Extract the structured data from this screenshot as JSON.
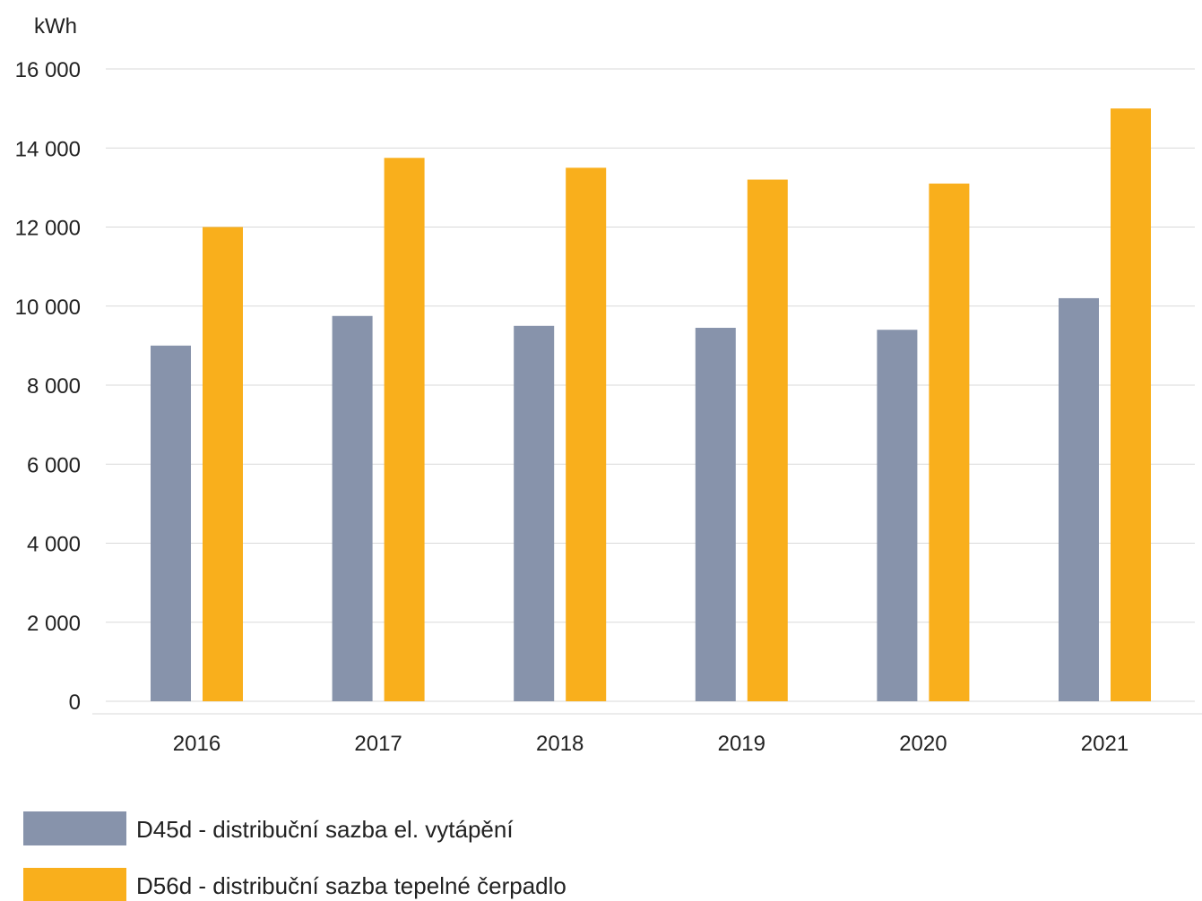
{
  "chart_data": {
    "type": "bar",
    "unit_label": "kWh",
    "categories": [
      "2016",
      "2017",
      "2018",
      "2019",
      "2020",
      "2021"
    ],
    "series": [
      {
        "name": "D45d - distribuční sazba el. vytápění",
        "color": "#8793ab",
        "values": [
          9000,
          9750,
          9500,
          9450,
          9400,
          10200
        ]
      },
      {
        "name": "D56d - distribuční sazba tepelné čerpadlo",
        "color": "#f9af1c",
        "values": [
          12000,
          13750,
          13500,
          13200,
          13100,
          15000
        ]
      }
    ],
    "ylim": [
      0,
      16000
    ],
    "yticks": [
      0,
      2000,
      4000,
      6000,
      8000,
      10000,
      12000,
      14000,
      16000
    ],
    "ytick_labels": [
      "0",
      "2 000",
      "4 000",
      "6 000",
      "8 000",
      "10 000",
      "12 000",
      "14 000",
      "16 000"
    ],
    "grid": true,
    "legend_position": "bottom-left"
  }
}
